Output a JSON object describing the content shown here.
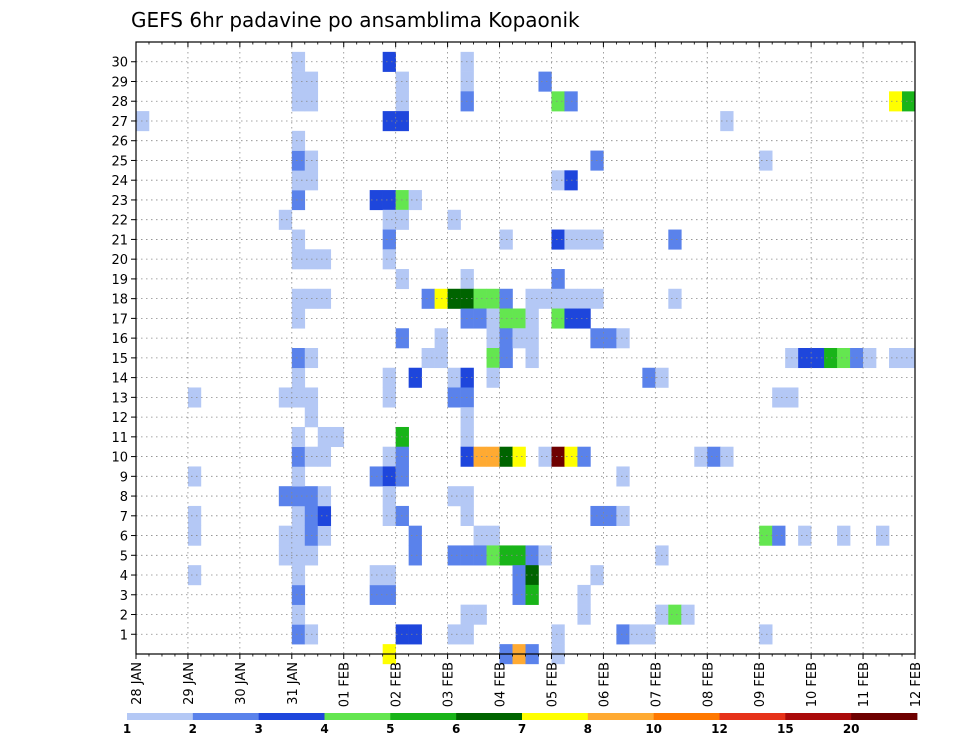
{
  "chart_data": {
    "type": "heatmap",
    "title": "GEFS 6hr padavine po ansamblima Kopaonik",
    "x_tick_labels": [
      "28 JAN",
      "29 JAN",
      "30 JAN",
      "31 JAN",
      "01 FEB",
      "02 FEB",
      "03 FEB",
      "04 FEB",
      "05 FEB",
      "06 FEB",
      "07 FEB",
      "08 FEB",
      "09 FEB",
      "10 FEB",
      "11 FEB",
      "12 FEB"
    ],
    "x_unit": "6-hour steps from 28 JAN 00Z",
    "xlim": [
      0,
      60
    ],
    "y_tick_labels": [
      "1",
      "2",
      "3",
      "4",
      "5",
      "6",
      "7",
      "8",
      "9",
      "10",
      "11",
      "12",
      "13",
      "14",
      "15",
      "16",
      "17",
      "18",
      "19",
      "20",
      "21",
      "22",
      "23",
      "24",
      "25",
      "26",
      "27",
      "28",
      "29",
      "30"
    ],
    "ylim": [
      0,
      30
    ],
    "grid": true,
    "colorbar": {
      "levels": [
        "1",
        "2",
        "3",
        "4",
        "5",
        "6",
        "7",
        "8",
        "10",
        "12",
        "15",
        "20"
      ],
      "colors": [
        "#b4c8f5",
        "#5a82eb",
        "#1e46dc",
        "#64e650",
        "#19b419",
        "#006400",
        "#ffff00",
        "#ffaa32",
        "#ff7800",
        "#e63219",
        "#aa0a0a",
        "#6e0000"
      ]
    },
    "cells": [
      [
        0,
        27,
        1
      ],
      [
        4,
        4,
        1
      ],
      [
        4,
        6,
        1
      ],
      [
        4,
        7,
        1
      ],
      [
        4,
        9,
        1
      ],
      [
        4,
        13,
        1
      ],
      [
        12,
        1,
        2
      ],
      [
        12,
        2,
        1
      ],
      [
        12,
        3,
        2
      ],
      [
        12,
        4,
        1
      ],
      [
        12,
        5,
        1
      ],
      [
        12,
        6,
        1
      ],
      [
        12,
        7,
        1
      ],
      [
        12,
        8,
        2
      ],
      [
        12,
        9,
        1
      ],
      [
        12,
        10,
        2
      ],
      [
        12,
        11,
        1
      ],
      [
        12,
        13,
        1
      ],
      [
        12,
        14,
        1
      ],
      [
        12,
        15,
        2
      ],
      [
        12,
        17,
        1
      ],
      [
        12,
        18,
        1
      ],
      [
        12,
        20,
        1
      ],
      [
        12,
        21,
        1
      ],
      [
        12,
        23,
        2
      ],
      [
        12,
        24,
        1
      ],
      [
        12,
        25,
        2
      ],
      [
        12,
        26,
        1
      ],
      [
        12,
        28,
        1
      ],
      [
        12,
        29,
        1
      ],
      [
        12,
        30,
        1
      ],
      [
        13,
        1,
        1
      ],
      [
        13,
        5,
        1
      ],
      [
        13,
        6,
        2
      ],
      [
        13,
        7,
        2
      ],
      [
        13,
        8,
        2
      ],
      [
        13,
        10,
        1
      ],
      [
        13,
        12,
        1
      ],
      [
        13,
        13,
        1
      ],
      [
        13,
        15,
        1
      ],
      [
        13,
        18,
        1
      ],
      [
        13,
        20,
        1
      ],
      [
        13,
        24,
        1
      ],
      [
        13,
        25,
        1
      ],
      [
        13,
        28,
        1
      ],
      [
        13,
        29,
        1
      ],
      [
        14,
        6,
        1
      ],
      [
        14,
        7,
        3
      ],
      [
        14,
        8,
        1
      ],
      [
        14,
        10,
        1
      ],
      [
        14,
        11,
        1
      ],
      [
        14,
        18,
        1
      ],
      [
        14,
        20,
        1
      ],
      [
        15,
        11,
        1
      ],
      [
        11,
        22,
        1
      ],
      [
        11,
        13,
        1
      ],
      [
        11,
        6,
        1
      ],
      [
        11,
        5,
        1
      ],
      [
        11,
        8,
        2
      ],
      [
        18,
        23,
        3
      ],
      [
        18,
        9,
        2
      ],
      [
        18,
        3,
        2
      ],
      [
        18,
        4,
        1
      ],
      [
        19,
        23,
        3
      ],
      [
        19,
        22,
        1
      ],
      [
        19,
        21,
        2
      ],
      [
        19,
        20,
        1
      ],
      [
        19,
        14,
        1
      ],
      [
        19,
        13,
        1
      ],
      [
        19,
        10,
        1
      ],
      [
        19,
        9,
        3
      ],
      [
        19,
        8,
        1
      ],
      [
        19,
        7,
        1
      ],
      [
        19,
        3,
        2
      ],
      [
        19,
        4,
        1
      ],
      [
        19,
        27,
        3
      ],
      [
        19,
        30,
        3
      ],
      [
        19,
        0,
        7
      ],
      [
        20,
        23,
        4
      ],
      [
        20,
        29,
        1
      ],
      [
        20,
        28,
        1
      ],
      [
        20,
        27,
        3
      ],
      [
        20,
        22,
        1
      ],
      [
        20,
        19,
        1
      ],
      [
        20,
        16,
        2
      ],
      [
        20,
        11,
        5
      ],
      [
        20,
        10,
        2
      ],
      [
        20,
        9,
        2
      ],
      [
        20,
        7,
        2
      ],
      [
        20,
        1,
        3
      ],
      [
        21,
        23,
        1
      ],
      [
        21,
        14,
        3
      ],
      [
        21,
        6,
        2
      ],
      [
        21,
        5,
        2
      ],
      [
        21,
        1,
        3
      ],
      [
        22,
        18,
        2
      ],
      [
        22,
        15,
        1
      ],
      [
        23,
        18,
        7
      ],
      [
        23,
        16,
        1
      ],
      [
        23,
        15,
        1
      ],
      [
        24,
        22,
        1
      ],
      [
        24,
        18,
        6
      ],
      [
        24,
        14,
        1
      ],
      [
        24,
        13,
        2
      ],
      [
        24,
        5,
        2
      ],
      [
        24,
        1,
        1
      ],
      [
        24,
        8,
        1
      ],
      [
        25,
        30,
        1
      ],
      [
        25,
        29,
        1
      ],
      [
        25,
        28,
        2
      ],
      [
        25,
        19,
        1
      ],
      [
        25,
        18,
        6
      ],
      [
        25,
        17,
        2
      ],
      [
        25,
        14,
        3
      ],
      [
        25,
        13,
        2
      ],
      [
        25,
        12,
        1
      ],
      [
        25,
        11,
        1
      ],
      [
        25,
        10,
        3
      ],
      [
        25,
        8,
        1
      ],
      [
        25,
        7,
        1
      ],
      [
        25,
        5,
        2
      ],
      [
        25,
        2,
        1
      ],
      [
        25,
        1,
        1
      ],
      [
        26,
        18,
        4
      ],
      [
        26,
        17,
        2
      ],
      [
        26,
        10,
        8
      ],
      [
        26,
        6,
        1
      ],
      [
        26,
        5,
        2
      ],
      [
        26,
        2,
        1
      ],
      [
        27,
        18,
        4
      ],
      [
        27,
        17,
        1
      ],
      [
        27,
        16,
        1
      ],
      [
        27,
        15,
        4
      ],
      [
        27,
        10,
        8
      ],
      [
        27,
        6,
        1
      ],
      [
        27,
        5,
        4
      ],
      [
        27,
        14,
        1
      ],
      [
        28,
        21,
        1
      ],
      [
        28,
        18,
        2
      ],
      [
        28,
        17,
        4
      ],
      [
        28,
        16,
        2
      ],
      [
        28,
        15,
        2
      ],
      [
        28,
        10,
        6
      ],
      [
        28,
        5,
        5
      ],
      [
        28,
        0,
        2
      ],
      [
        29,
        17,
        4
      ],
      [
        29,
        16,
        1
      ],
      [
        29,
        10,
        7
      ],
      [
        29,
        5,
        5
      ],
      [
        29,
        4,
        2
      ],
      [
        29,
        3,
        2
      ],
      [
        29,
        0,
        8
      ],
      [
        30,
        18,
        1
      ],
      [
        30,
        17,
        1
      ],
      [
        30,
        16,
        1
      ],
      [
        30,
        15,
        1
      ],
      [
        30,
        5,
        2
      ],
      [
        30,
        4,
        6
      ],
      [
        30,
        3,
        5
      ],
      [
        30,
        0,
        2
      ],
      [
        31,
        29,
        2
      ],
      [
        31,
        18,
        1
      ],
      [
        31,
        10,
        1
      ],
      [
        31,
        5,
        1
      ],
      [
        32,
        28,
        4
      ],
      [
        32,
        24,
        1
      ],
      [
        32,
        21,
        3
      ],
      [
        32,
        19,
        2
      ],
      [
        32,
        18,
        1
      ],
      [
        32,
        17,
        4
      ],
      [
        32,
        10,
        14
      ],
      [
        32,
        1,
        1
      ],
      [
        32,
        0,
        1
      ],
      [
        33,
        28,
        2
      ],
      [
        33,
        24,
        3
      ],
      [
        33,
        21,
        1
      ],
      [
        33,
        18,
        1
      ],
      [
        33,
        17,
        3
      ],
      [
        33,
        10,
        7
      ],
      [
        34,
        21,
        1
      ],
      [
        34,
        18,
        1
      ],
      [
        34,
        17,
        3
      ],
      [
        34,
        10,
        2
      ],
      [
        34,
        3,
        1
      ],
      [
        34,
        2,
        1
      ],
      [
        35,
        25,
        2
      ],
      [
        35,
        21,
        1
      ],
      [
        35,
        18,
        1
      ],
      [
        35,
        16,
        2
      ],
      [
        35,
        7,
        2
      ],
      [
        35,
        4,
        1
      ],
      [
        36,
        16,
        2
      ],
      [
        36,
        7,
        2
      ],
      [
        37,
        16,
        1
      ],
      [
        37,
        9,
        1
      ],
      [
        37,
        7,
        1
      ],
      [
        37,
        1,
        2
      ],
      [
        38,
        1,
        1
      ],
      [
        39,
        14,
        2
      ],
      [
        39,
        1,
        1
      ],
      [
        40,
        14,
        1
      ],
      [
        40,
        5,
        1
      ],
      [
        40,
        2,
        1
      ],
      [
        41,
        21,
        2
      ],
      [
        41,
        18,
        1
      ],
      [
        41,
        2,
        4
      ],
      [
        42,
        2,
        1
      ],
      [
        43,
        10,
        1
      ],
      [
        44,
        10,
        2
      ],
      [
        45,
        10,
        1
      ],
      [
        45,
        27,
        1
      ],
      [
        48,
        25,
        1
      ],
      [
        48,
        6,
        4
      ],
      [
        48,
        1,
        1
      ],
      [
        49,
        13,
        1
      ],
      [
        49,
        6,
        2
      ],
      [
        50,
        15,
        1
      ],
      [
        50,
        13,
        1
      ],
      [
        51,
        15,
        3
      ],
      [
        51,
        6,
        1
      ],
      [
        52,
        15,
        3
      ],
      [
        53,
        15,
        5
      ],
      [
        54,
        15,
        4
      ],
      [
        54,
        6,
        1
      ],
      [
        55,
        15,
        2
      ],
      [
        56,
        15,
        1
      ],
      [
        57,
        6,
        1
      ],
      [
        58,
        15,
        1
      ],
      [
        58,
        28,
        7
      ],
      [
        59,
        28,
        5
      ],
      [
        59,
        15,
        1
      ],
      [
        60,
        20,
        3
      ],
      [
        61,
        20,
        1
      ]
    ]
  }
}
